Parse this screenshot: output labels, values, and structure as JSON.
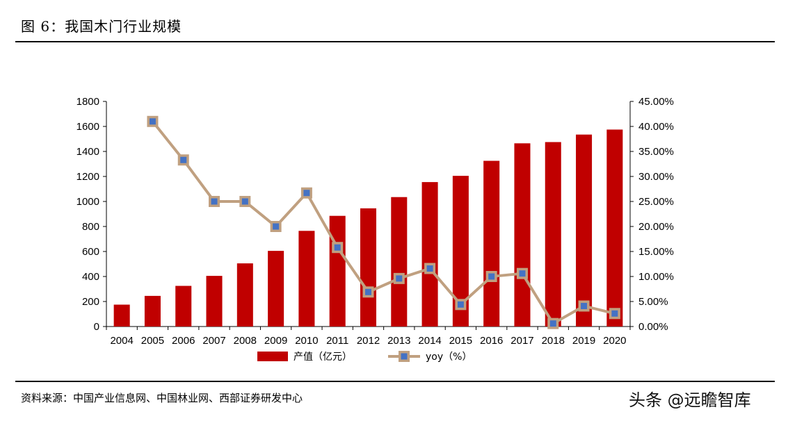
{
  "figure": {
    "title": "图 6：我国木门行业规模",
    "source": "资料来源：中国产业信息网、中国林业网、西部证券研发中心",
    "watermark": "头条 @远瞻智库"
  },
  "chart_data": {
    "type": "bar",
    "categories": [
      "2004",
      "2005",
      "2006",
      "2007",
      "2008",
      "2009",
      "2010",
      "2011",
      "2012",
      "2013",
      "2014",
      "2015",
      "2016",
      "2017",
      "2018",
      "2019",
      "2020"
    ],
    "series": [
      {
        "name": "产值（亿元）",
        "type": "bar",
        "axis": "left",
        "color": "#c00000",
        "values": [
          175,
          245,
          325,
          405,
          505,
          605,
          765,
          885,
          945,
          1035,
          1155,
          1205,
          1325,
          1465,
          1475,
          1535,
          1575
        ]
      },
      {
        "name": "yoy（%）",
        "type": "line",
        "axis": "right",
        "color": "#c0a080",
        "marker_color": "#4472c4",
        "values": [
          null,
          41.0,
          33.3,
          25.0,
          25.0,
          20.0,
          26.7,
          15.8,
          6.9,
          9.6,
          11.6,
          4.4,
          10.0,
          10.6,
          0.6,
          4.1,
          2.6
        ]
      }
    ],
    "left_axis": {
      "ylim": [
        0,
        1800
      ],
      "ticks": [
        "0",
        "200",
        "400",
        "600",
        "800",
        "1000",
        "1200",
        "1400",
        "1600",
        "1800"
      ]
    },
    "right_axis": {
      "ylim": [
        0,
        45
      ],
      "ticks": [
        "0.00%",
        "5.00%",
        "10.00%",
        "15.00%",
        "20.00%",
        "25.00%",
        "30.00%",
        "35.00%",
        "40.00%",
        "45.00%"
      ]
    },
    "legend": {
      "position": "bottom-center"
    },
    "grid": false
  }
}
